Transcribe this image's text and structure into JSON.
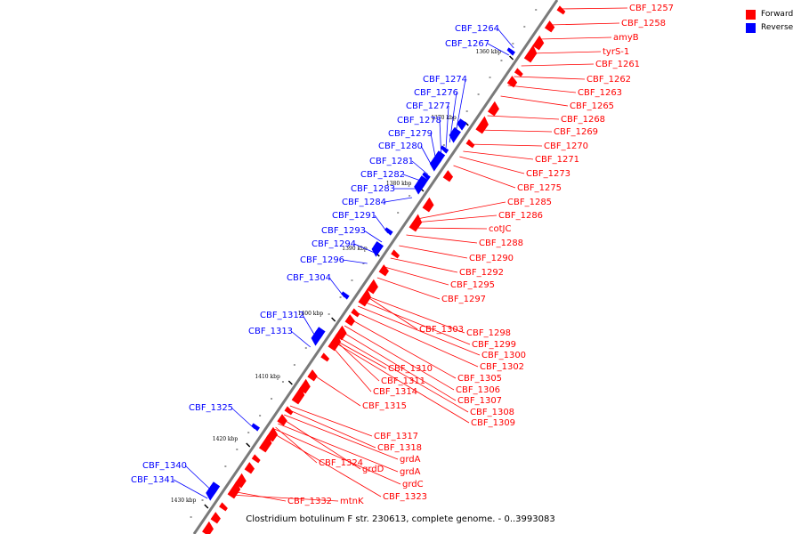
{
  "title": "Clostridium botulinum F str. 230613, complete genome. - 0..3993083",
  "legend": {
    "forward": "Forward",
    "reverse": "Reverse",
    "forward_color": "#ff0000",
    "reverse_color": "#0000ff"
  },
  "ticks": [
    "1360 kbp",
    "1370 kbp",
    "1380 kbp",
    "1390 kbp",
    "1400 kbp",
    "1410 kbp",
    "1420 kbp",
    "1430 kbp"
  ],
  "forward_genes": [
    "CBF_1257",
    "CBF_1258",
    "amyB",
    "tyrS-1",
    "CBF_1261",
    "CBF_1262",
    "CBF_1263",
    "CBF_1265",
    "CBF_1268",
    "CBF_1269",
    "CBF_1270",
    "CBF_1271",
    "CBF_1273",
    "CBF_1275",
    "CBF_1285",
    "CBF_1286",
    "cotJC",
    "CBF_1288",
    "CBF_1290",
    "CBF_1292",
    "CBF_1295",
    "CBF_1297",
    "CBF_1303",
    "CBF_1298",
    "CBF_1299",
    "CBF_1300",
    "CBF_1302",
    "CBF_1310",
    "CBF_1305",
    "CBF_1311",
    "CBF_1306",
    "CBF_1314",
    "CBF_1307",
    "CBF_1315",
    "CBF_1308",
    "CBF_1309",
    "CBF_1317",
    "CBF_1318",
    "grdA",
    "CBF_1324",
    "grdD",
    "grdA",
    "grdC",
    "CBF_1323",
    "CBF_1332",
    "mtnK"
  ],
  "reverse_genes": [
    "CBF_1264",
    "CBF_1267",
    "CBF_1274",
    "CBF_1276",
    "CBF_1277",
    "CBF_1278",
    "CBF_1279",
    "CBF_1280",
    "CBF_1281",
    "CBF_1282",
    "CBF_1283",
    "CBF_1284",
    "CBF_1291",
    "CBF_1293",
    "CBF_1294",
    "CBF_1296",
    "CBF_1304",
    "CBF_1312",
    "CBF_1313",
    "CBF_1325",
    "CBF_1340",
    "CBF_1341"
  ]
}
